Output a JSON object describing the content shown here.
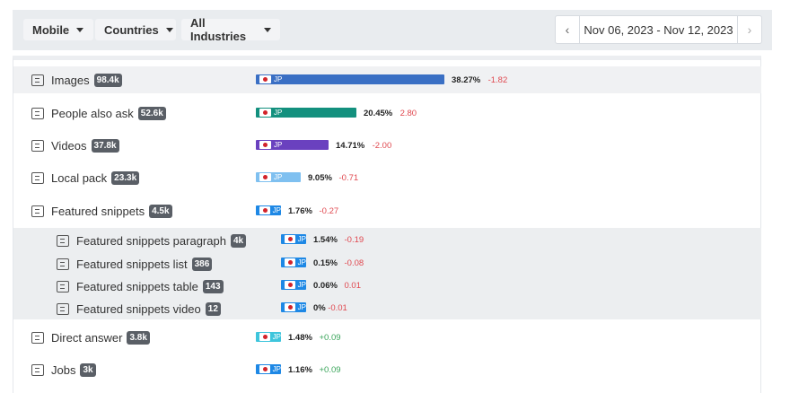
{
  "filters": {
    "device": "Mobile",
    "country": "Countries",
    "industry": "All Industries"
  },
  "date_range": {
    "label": "Nov 06, 2023 - Nov 12, 2023",
    "prev_icon": "chevron-left-icon",
    "next_icon": "chevron-right-icon"
  },
  "features": [
    {
      "label": "Images",
      "count": "98.4k",
      "icon": "image-icon",
      "country": "JP",
      "color": "#3a6fc4",
      "bar_fraction": 0.3827,
      "pct": "38.27%",
      "change": "-1.82",
      "dir": "neg"
    },
    {
      "label": "People also ask",
      "count": "52.6k",
      "icon": "chat-icon",
      "country": "JP",
      "color": "#13907e",
      "bar_fraction": 0.2045,
      "pct": "20.45%",
      "change": "2.80",
      "dir": "neg"
    },
    {
      "label": "Videos",
      "count": "37.8k",
      "icon": "video-icon",
      "country": "JP",
      "color": "#6a41bf",
      "bar_fraction": 0.1471,
      "pct": "14.71%",
      "change": "-2.00",
      "dir": "neg"
    },
    {
      "label": "Local pack",
      "count": "23.3k",
      "icon": "map-pin-icon",
      "country": "JP",
      "color": "#7fc0f0",
      "bar_fraction": 0.0905,
      "pct": "9.05%",
      "change": "-0.71",
      "dir": "neg"
    },
    {
      "label": "Featured snippets",
      "count": "4.5k",
      "icon": "crown-icon",
      "country": "JP",
      "color": "#1e88e5",
      "bar_fraction": 0.0176,
      "pct": "1.76%",
      "change": "-0.27",
      "dir": "neg"
    }
  ],
  "sub_features": [
    {
      "label": "Featured snippets paragraph",
      "count": "4k",
      "icon": "paragraph-icon",
      "country": "JP",
      "color": "#1e88e5",
      "bar_fraction": 0.0154,
      "pct": "1.54%",
      "change": "-0.19",
      "dir": "neg"
    },
    {
      "label": "Featured snippets list",
      "count": "386",
      "icon": "list-icon",
      "country": "JP",
      "color": "#1e88e5",
      "bar_fraction": 0.0015,
      "pct": "0.15%",
      "change": "-0.08",
      "dir": "neg"
    },
    {
      "label": "Featured snippets table",
      "count": "143",
      "icon": "table-icon",
      "country": "JP",
      "color": "#1e88e5",
      "bar_fraction": 0.0006,
      "pct": "0.06%",
      "change": "0.01",
      "dir": "neg"
    },
    {
      "label": "Featured snippets video",
      "count": "12",
      "icon": "video-icon",
      "country": "JP",
      "color": "#1e88e5",
      "bar_fraction": 0.0,
      "pct": "0%",
      "change": "-0.01",
      "dir": "neg"
    }
  ],
  "more_features": [
    {
      "label": "Direct answer",
      "count": "3.8k",
      "icon": "answer-icon",
      "country": "JP",
      "color": "#3ec5dc",
      "bar_fraction": 0.0148,
      "pct": "1.48%",
      "change": "+0.09",
      "dir": "pos"
    },
    {
      "label": "Jobs",
      "count": "3k",
      "icon": "briefcase-icon",
      "country": "JP",
      "color": "#1e88e5",
      "bar_fraction": 0.0116,
      "pct": "1.16%",
      "change": "+0.09",
      "dir": "pos"
    }
  ]
}
